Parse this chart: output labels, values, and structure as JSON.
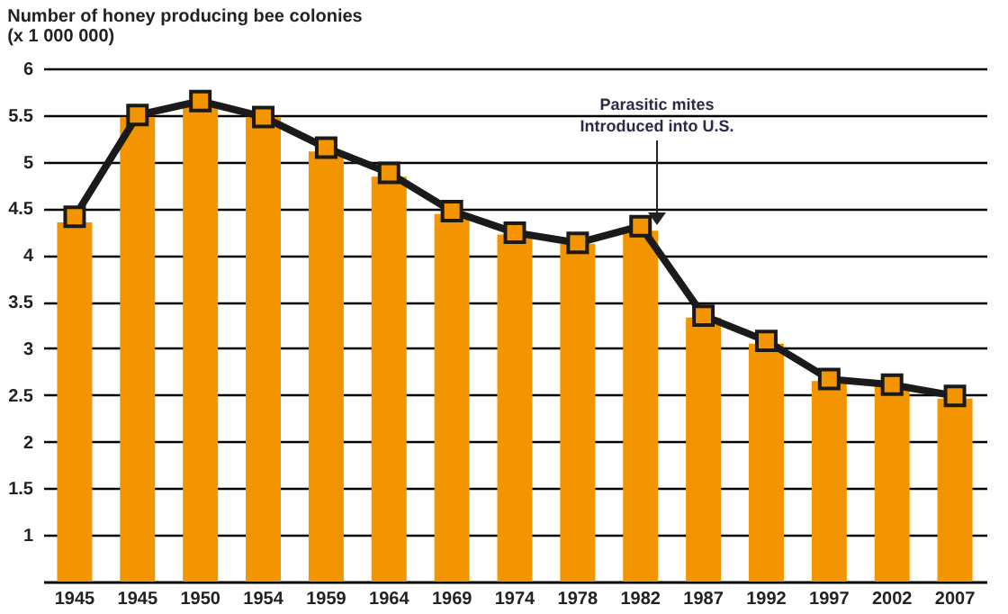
{
  "chart_data": {
    "type": "bar",
    "title": "Number of honey producing bee colonies",
    "subtitle": "(x 1 000 000)",
    "categories": [
      "1945",
      "1945",
      "1950",
      "1954",
      "1959",
      "1964",
      "1969",
      "1974",
      "1978",
      "1982",
      "1987",
      "1992",
      "1997",
      "2002",
      "2007"
    ],
    "series": [
      {
        "color": "#f29500",
        "values": [
          4.35,
          5.48,
          5.63,
          5.48,
          5.11,
          4.84,
          4.44,
          4.22,
          4.12,
          4.26,
          3.33,
          3.05,
          2.65,
          2.6,
          2.46
        ]
      },
      {
        "type": "line",
        "color": "#1a1a1a",
        "marker": "square",
        "values": [
          4.41,
          5.5,
          5.65,
          5.48,
          5.15,
          4.88,
          4.47,
          4.24,
          4.13,
          4.31,
          3.35,
          3.08,
          2.67,
          2.61,
          2.49
        ]
      }
    ],
    "ylim": [
      0.5,
      6
    ],
    "yticks": [
      1,
      1.5,
      2,
      2.5,
      3,
      3.5,
      4,
      4.5,
      5,
      5.5,
      6
    ],
    "grid": "y",
    "annotations": [
      "Parasitic mites\nIntroduced into U.S."
    ]
  }
}
